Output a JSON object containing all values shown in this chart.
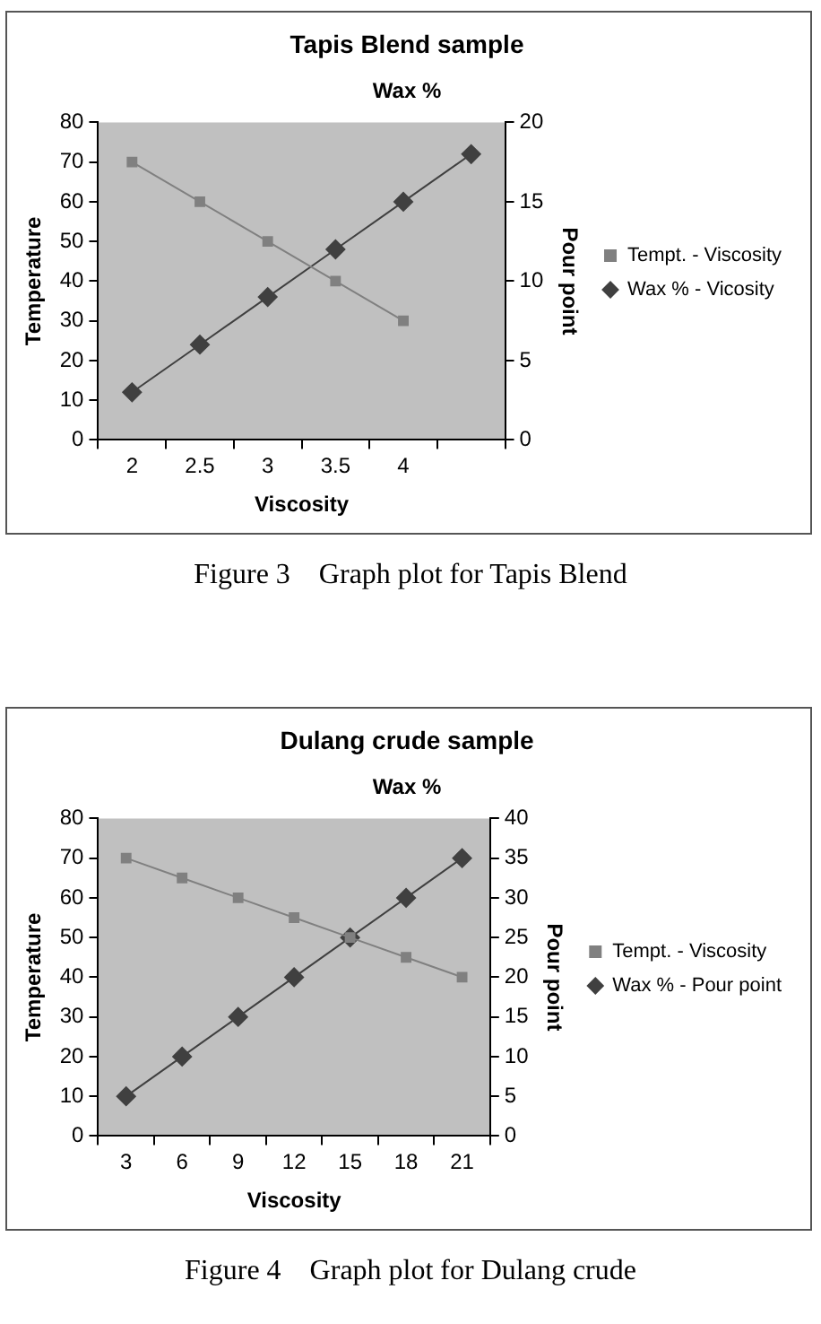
{
  "chart_data": [
    {
      "type": "line",
      "title": "Tapis Blend sample",
      "subtitle": "Wax %",
      "xlabel": "Viscosity",
      "ylabel": "Temperature",
      "y2label": "Pour point",
      "categories": [
        "2",
        "2.5",
        "3",
        "3.5",
        "4",
        null
      ],
      "series": [
        {
          "name": "Tempt. - Viscosity",
          "color": "#808080",
          "marker": "square",
          "values": [
            70,
            60,
            50,
            40,
            30,
            null
          ]
        },
        {
          "name": "Wax % - Vicosity",
          "color": "#404040",
          "marker": "diamond",
          "axis": "y2",
          "values": [
            3,
            6,
            9,
            12,
            15,
            18
          ]
        }
      ],
      "ylim": [
        0,
        80
      ],
      "yticks": [
        0,
        10,
        20,
        30,
        40,
        50,
        60,
        70,
        80
      ],
      "y2lim": [
        0,
        20
      ],
      "y2ticks": [
        0,
        5,
        10,
        15,
        20
      ],
      "grid": false,
      "legend": "right",
      "annotations": [
        "Figure 3    Graph plot for Tapis Blend"
      ]
    },
    {
      "type": "line",
      "title": "Dulang crude sample",
      "subtitle": "Wax %",
      "xlabel": "Viscosity",
      "ylabel": "Temperature",
      "y2label": "Pour point",
      "categories": [
        "3",
        "6",
        "9",
        "12",
        "15",
        "18",
        "21"
      ],
      "series": [
        {
          "name": "Tempt. - Viscosity",
          "color": "#808080",
          "marker": "square",
          "values": [
            70,
            65,
            60,
            55,
            50,
            45,
            40
          ]
        },
        {
          "name": "Wax % - Pour point",
          "color": "#404040",
          "marker": "diamond",
          "axis": "y2",
          "values": [
            5,
            10,
            15,
            20,
            25,
            30,
            35
          ]
        }
      ],
      "ylim": [
        0,
        80
      ],
      "yticks": [
        0,
        10,
        20,
        30,
        40,
        50,
        60,
        70,
        80
      ],
      "y2lim": [
        0,
        40
      ],
      "y2ticks": [
        0,
        5,
        10,
        15,
        20,
        25,
        30,
        35,
        40
      ],
      "grid": false,
      "legend": "right",
      "annotations": [
        "Figure 4    Graph plot for Dulang crude"
      ]
    }
  ]
}
